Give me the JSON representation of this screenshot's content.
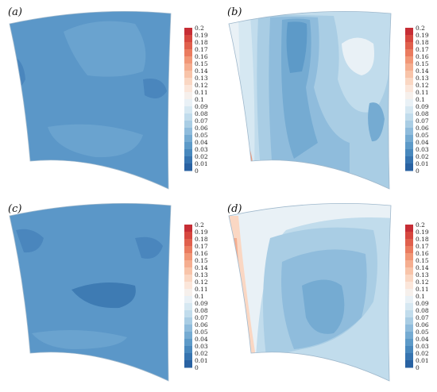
{
  "panels": [
    {
      "label": "(a)"
    },
    {
      "label": "(b)"
    },
    {
      "label": "(c)"
    },
    {
      "label": "(d)"
    }
  ],
  "colorbar_ticks": [
    "0.2",
    "0.19",
    "0.18",
    "0.17",
    "0.16",
    "0.15",
    "0.14",
    "0.13",
    "0.12",
    "0.11",
    "0.1",
    "0.09",
    "0.08",
    "0.07",
    "0.06",
    "0.05",
    "0.04",
    "0.03",
    "0.02",
    "0.01",
    "0"
  ],
  "colorbar_colors": [
    "#c62d35",
    "#d6473f",
    "#e0604d",
    "#ea7b5f",
    "#f19777",
    "#f5ae90",
    "#f8c4a9",
    "#fad7c3",
    "#fbe6da",
    "#f6f0ec",
    "#e9f1f6",
    "#d6e8f2",
    "#c1dcec",
    "#a9cde4",
    "#8fbcdc",
    "#75abd2",
    "#5d9ac8",
    "#4888bd",
    "#3674b0",
    "#2962a2"
  ]
}
